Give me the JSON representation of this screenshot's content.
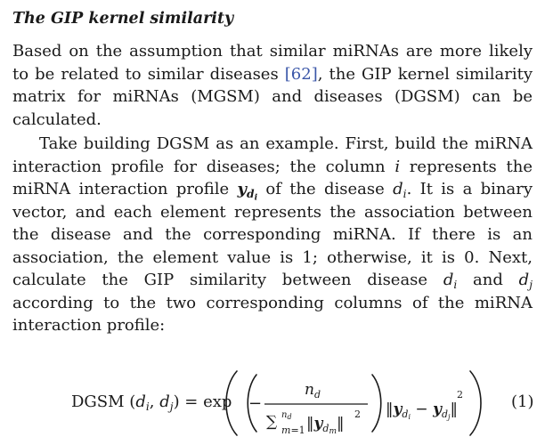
{
  "section": {
    "title": "The GIP kernel similarity"
  },
  "paragraph1": {
    "text_a": "Based on the assumption that similar miRNAs are more likely to be related to similar diseases ",
    "citation": "[62]",
    "text_b": ", the GIP kernel similarity matrix for miRNAs (MGSM) and diseases (DGSM) can be calculated."
  },
  "paragraph2": {
    "text_a": "Take building DGSM as an example. First, build the miRNA interaction profile for diseases; the column ",
    "var_i": "i",
    "text_b": " represents the miRNA interaction profile ",
    "y": "y",
    "y_sub": "d",
    "y_subsub": "i",
    "text_c": " of the disease ",
    "d": "d",
    "d_sub": "i",
    "text_d": ". It is a binary vector, and each element represents the association between the disease and the corresponding miRNA. If there is an association, the element value is 1; otherwise, it is 0. Next, calculate the GIP similarity between disease ",
    "text_e": " and ",
    "dj_sub": "j",
    "text_f": " according to the two corresponding columns of the miRNA interaction profile:"
  },
  "equation": {
    "lhs": "DGSM (dᵢ, dⱼ) = exp",
    "numerator": "n",
    "numerator_sub": "d",
    "sum_symbol": "∑",
    "sum_upper": "n",
    "sum_upper_sub": "d",
    "sum_lower": "m=1",
    "denominator_body": "‖y",
    "denominator_sub": "d",
    "denominator_subsub": "m",
    "exponent": "2",
    "number": "(1)"
  }
}
